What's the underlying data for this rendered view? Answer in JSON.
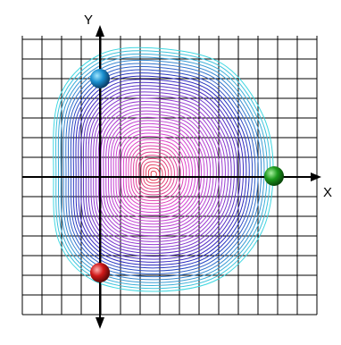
{
  "axes": {
    "x_label": "X",
    "y_label": "Y"
  }
}
